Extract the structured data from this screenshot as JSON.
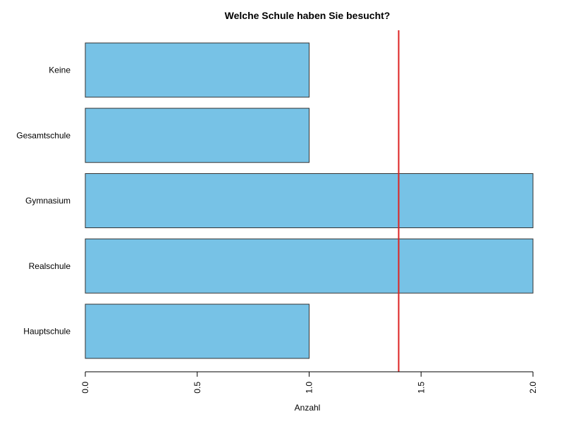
{
  "chart_data": {
    "type": "bar",
    "orientation": "horizontal",
    "title": "Welche Schule haben Sie besucht?",
    "xlabel": "Anzahl",
    "ylabel": "",
    "categories": [
      "Hauptschule",
      "Realschule",
      "Gymnasium",
      "Gesamtschule",
      "Keine"
    ],
    "values": [
      1,
      2,
      2,
      1,
      1
    ],
    "xlim": [
      0,
      2
    ],
    "x_ticks": [
      0,
      0.5,
      1,
      1.5,
      2
    ],
    "x_tick_labels": [
      "0.0",
      "0.5",
      "1.0",
      "1.5",
      "2.0"
    ],
    "reference_line": {
      "orientation": "vertical",
      "x": 1.4,
      "color": "#dd2222"
    },
    "bar_color": "#77c2e6",
    "bar_border_color": "#333333",
    "grid": false,
    "legend": "none"
  }
}
